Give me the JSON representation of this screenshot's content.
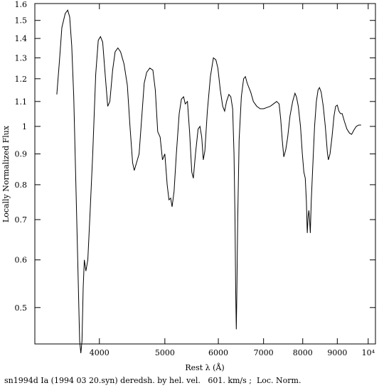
{
  "chart_data": {
    "type": "line",
    "xlabel": "Rest λ (Å)",
    "ylabel": "Locally Normalized Flux",
    "caption": "sn1994d Ia (1994 03 20.syn) deredsh. by hel. vel.   601. km/s ;  Loc. Norm.",
    "x_scale": "log",
    "y_scale": "log",
    "xlim": [
      3210,
      10250
    ],
    "ylim": [
      0.435,
      1.6
    ],
    "x_ticks": [
      {
        "value": 4000,
        "label": "4000"
      },
      {
        "value": 5000,
        "label": "5000"
      },
      {
        "value": 6000,
        "label": "6000"
      },
      {
        "value": 7000,
        "label": "7000"
      },
      {
        "value": 8000,
        "label": "8000"
      },
      {
        "value": 9000,
        "label": "9000"
      },
      {
        "value": 10000,
        "label": "10⁴"
      }
    ],
    "y_ticks": [
      {
        "value": 0.5,
        "label": "0.5"
      },
      {
        "value": 0.6,
        "label": "0.6"
      },
      {
        "value": 0.7,
        "label": "0.7"
      },
      {
        "value": 0.8,
        "label": "0.8"
      },
      {
        "value": 0.9,
        "label": "0.9"
      },
      {
        "value": 1.0,
        "label": "1"
      },
      {
        "value": 1.1,
        "label": "1.1"
      },
      {
        "value": 1.2,
        "label": "1.2"
      },
      {
        "value": 1.3,
        "label": "1.3"
      },
      {
        "value": 1.4,
        "label": "1.4"
      },
      {
        "value": 1.5,
        "label": "1.5"
      },
      {
        "value": 1.6,
        "label": "1.6"
      }
    ],
    "series": [
      {
        "color": "#000000",
        "points": [
          [
            3460,
            1.13
          ],
          [
            3490,
            1.28
          ],
          [
            3520,
            1.46
          ],
          [
            3560,
            1.54
          ],
          [
            3590,
            1.56
          ],
          [
            3615,
            1.52
          ],
          [
            3640,
            1.36
          ],
          [
            3665,
            1.12
          ],
          [
            3690,
            0.82
          ],
          [
            3715,
            0.6
          ],
          [
            3740,
            0.44
          ],
          [
            3755,
            0.42
          ],
          [
            3770,
            0.44
          ],
          [
            3785,
            0.54
          ],
          [
            3800,
            0.6
          ],
          [
            3820,
            0.575
          ],
          [
            3845,
            0.6
          ],
          [
            3875,
            0.72
          ],
          [
            3910,
            0.9
          ],
          [
            3950,
            1.22
          ],
          [
            3985,
            1.39
          ],
          [
            4015,
            1.41
          ],
          [
            4045,
            1.38
          ],
          [
            4080,
            1.22
          ],
          [
            4115,
            1.08
          ],
          [
            4145,
            1.1
          ],
          [
            4185,
            1.24
          ],
          [
            4220,
            1.33
          ],
          [
            4260,
            1.35
          ],
          [
            4300,
            1.33
          ],
          [
            4350,
            1.27
          ],
          [
            4400,
            1.17
          ],
          [
            4440,
            1.0
          ],
          [
            4480,
            0.87
          ],
          [
            4505,
            0.845
          ],
          [
            4540,
            0.87
          ],
          [
            4580,
            0.9
          ],
          [
            4620,
            1.03
          ],
          [
            4660,
            1.18
          ],
          [
            4700,
            1.23
          ],
          [
            4750,
            1.25
          ],
          [
            4800,
            1.24
          ],
          [
            4840,
            1.15
          ],
          [
            4880,
            0.98
          ],
          [
            4920,
            0.96
          ],
          [
            4960,
            0.88
          ],
          [
            5000,
            0.9
          ],
          [
            5040,
            0.8
          ],
          [
            5070,
            0.755
          ],
          [
            5100,
            0.76
          ],
          [
            5125,
            0.735
          ],
          [
            5160,
            0.78
          ],
          [
            5200,
            0.9
          ],
          [
            5250,
            1.05
          ],
          [
            5290,
            1.11
          ],
          [
            5330,
            1.12
          ],
          [
            5360,
            1.09
          ],
          [
            5400,
            1.1
          ],
          [
            5440,
            0.98
          ],
          [
            5480,
            0.84
          ],
          [
            5510,
            0.82
          ],
          [
            5550,
            0.9
          ],
          [
            5600,
            0.99
          ],
          [
            5635,
            1.0
          ],
          [
            5670,
            0.96
          ],
          [
            5700,
            0.88
          ],
          [
            5730,
            0.91
          ],
          [
            5780,
            1.06
          ],
          [
            5840,
            1.21
          ],
          [
            5900,
            1.3
          ],
          [
            5950,
            1.29
          ],
          [
            5990,
            1.25
          ],
          [
            6040,
            1.15
          ],
          [
            6090,
            1.08
          ],
          [
            6130,
            1.06
          ],
          [
            6170,
            1.1
          ],
          [
            6220,
            1.13
          ],
          [
            6260,
            1.12
          ],
          [
            6300,
            1.07
          ],
          [
            6330,
            0.9
          ],
          [
            6350,
            0.7
          ],
          [
            6365,
            0.54
          ],
          [
            6378,
            0.46
          ],
          [
            6390,
            0.52
          ],
          [
            6410,
            0.7
          ],
          [
            6440,
            0.95
          ],
          [
            6490,
            1.12
          ],
          [
            6540,
            1.2
          ],
          [
            6580,
            1.21
          ],
          [
            6620,
            1.18
          ],
          [
            6700,
            1.14
          ],
          [
            6760,
            1.1
          ],
          [
            6840,
            1.08
          ],
          [
            6920,
            1.07
          ],
          [
            7000,
            1.07
          ],
          [
            7080,
            1.075
          ],
          [
            7160,
            1.08
          ],
          [
            7240,
            1.09
          ],
          [
            7320,
            1.1
          ],
          [
            7380,
            1.09
          ],
          [
            7420,
            1.03
          ],
          [
            7460,
            0.95
          ],
          [
            7500,
            0.89
          ],
          [
            7550,
            0.915
          ],
          [
            7600,
            0.96
          ],
          [
            7660,
            1.04
          ],
          [
            7730,
            1.1
          ],
          [
            7790,
            1.135
          ],
          [
            7830,
            1.12
          ],
          [
            7880,
            1.08
          ],
          [
            7940,
            1.0
          ],
          [
            7990,
            0.9
          ],
          [
            8030,
            0.84
          ],
          [
            8070,
            0.82
          ],
          [
            8100,
            0.75
          ],
          [
            8125,
            0.665
          ],
          [
            8150,
            0.71
          ],
          [
            8170,
            0.725
          ],
          [
            8190,
            0.7
          ],
          [
            8210,
            0.665
          ],
          [
            8235,
            0.75
          ],
          [
            8280,
            0.86
          ],
          [
            8330,
            1.0
          ],
          [
            8380,
            1.1
          ],
          [
            8430,
            1.15
          ],
          [
            8470,
            1.16
          ],
          [
            8520,
            1.14
          ],
          [
            8580,
            1.08
          ],
          [
            8640,
            1.0
          ],
          [
            8700,
            0.905
          ],
          [
            8730,
            0.88
          ],
          [
            8780,
            0.9
          ],
          [
            8840,
            0.96
          ],
          [
            8900,
            1.04
          ],
          [
            8950,
            1.08
          ],
          [
            9000,
            1.085
          ],
          [
            9050,
            1.06
          ],
          [
            9100,
            1.05
          ],
          [
            9150,
            1.05
          ],
          [
            9220,
            1.02
          ],
          [
            9300,
            0.99
          ],
          [
            9380,
            0.975
          ],
          [
            9450,
            0.97
          ],
          [
            9520,
            0.985
          ],
          [
            9600,
            1.0
          ],
          [
            9680,
            1.005
          ],
          [
            9760,
            1.005
          ]
        ]
      }
    ]
  }
}
